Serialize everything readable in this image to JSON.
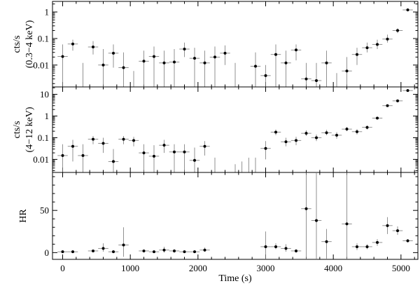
{
  "chart_data": [
    {
      "type": "scatter",
      "panel": "soft",
      "ylabel_line1": "cts/s",
      "ylabel_line2": "(0.3−4 keV)",
      "yscale": "log",
      "ylim": [
        0.0015,
        2.5
      ],
      "yticks": [
        {
          "v": 0.01,
          "label": "0.01"
        },
        {
          "v": 0.1,
          "label": "0.1"
        },
        {
          "v": 1,
          "label": "1"
        }
      ],
      "xlim": [
        -150,
        5250
      ],
      "bin_halfwidth": 75,
      "points": [
        {
          "x": 0,
          "y": 0.021,
          "lo": 0.0015,
          "hi": 0.06
        },
        {
          "x": 150,
          "y": 0.062,
          "lo": 0.035,
          "hi": 0.09
        },
        {
          "x": 300,
          "y": null,
          "lo": 0.0015,
          "hi": 0.012
        },
        {
          "x": 450,
          "y": 0.048,
          "lo": 0.025,
          "hi": 0.08
        },
        {
          "x": 600,
          "y": 0.01,
          "lo": 0.0015,
          "hi": 0.04
        },
        {
          "x": 750,
          "y": 0.028,
          "lo": 0.008,
          "hi": 0.06
        },
        {
          "x": 900,
          "y": 0.008,
          "lo": 0.0015,
          "hi": 0.03
        },
        {
          "x": 1050,
          "y": null,
          "lo": 0.0015,
          "hi": 0.006
        },
        {
          "x": 1200,
          "y": 0.014,
          "lo": 0.0015,
          "hi": 0.035
        },
        {
          "x": 1350,
          "y": 0.021,
          "lo": 0.0015,
          "hi": 0.05
        },
        {
          "x": 1500,
          "y": 0.012,
          "lo": 0.0015,
          "hi": 0.035
        },
        {
          "x": 1650,
          "y": 0.013,
          "lo": 0.0015,
          "hi": 0.04
        },
        {
          "x": 1800,
          "y": 0.04,
          "lo": 0.02,
          "hi": 0.07
        },
        {
          "x": 1950,
          "y": 0.018,
          "lo": 0.0015,
          "hi": 0.045
        },
        {
          "x": 2100,
          "y": 0.012,
          "lo": 0.0015,
          "hi": 0.035
        },
        {
          "x": 2250,
          "y": 0.02,
          "lo": 0.0015,
          "hi": 0.05
        },
        {
          "x": 2400,
          "y": 0.028,
          "lo": 0.01,
          "hi": 0.055
        },
        {
          "x": 2550,
          "y": null,
          "lo": 0.0015,
          "hi": 0.012
        },
        {
          "x": 2850,
          "y": 0.009,
          "lo": 0.0015,
          "hi": 0.03
        },
        {
          "x": 3000,
          "y": 0.004,
          "lo": 0.0015,
          "hi": 0.01
        },
        {
          "x": 3150,
          "y": 0.025,
          "lo": 0.0015,
          "hi": 0.06
        },
        {
          "x": 3300,
          "y": 0.012,
          "lo": 0.0015,
          "hi": 0.035
        },
        {
          "x": 3450,
          "y": 0.037,
          "lo": 0.015,
          "hi": 0.06
        },
        {
          "x": 3600,
          "y": 0.003,
          "lo": 0.0015,
          "hi": 0.012
        },
        {
          "x": 3750,
          "y": 0.0026,
          "lo": 0.0015,
          "hi": 0.012
        },
        {
          "x": 3900,
          "y": 0.012,
          "lo": 0.0015,
          "hi": 0.035
        },
        {
          "x": 4050,
          "y": null,
          "lo": 0.0015,
          "hi": 0.005
        },
        {
          "x": 4200,
          "y": 0.006,
          "lo": 0.0015,
          "hi": 0.02
        },
        {
          "x": 4350,
          "y": 0.025,
          "lo": 0.01,
          "hi": 0.045
        },
        {
          "x": 4500,
          "y": 0.045,
          "lo": 0.03,
          "hi": 0.07
        },
        {
          "x": 4650,
          "y": 0.06,
          "lo": 0.04,
          "hi": 0.09
        },
        {
          "x": 4800,
          "y": 0.095,
          "lo": 0.07,
          "hi": 0.14
        },
        {
          "x": 4950,
          "y": 0.2,
          "lo": 0.16,
          "hi": 0.24
        },
        {
          "x": 5100,
          "y": 1.2,
          "lo": 1.05,
          "hi": 1.35
        }
      ]
    },
    {
      "type": "scatter",
      "panel": "hard",
      "ylabel_line1": "cts/s",
      "ylabel_line2": "(4−12 keV)",
      "yscale": "log",
      "ylim": [
        0.0025,
        22
      ],
      "yticks": [
        {
          "v": 0.01,
          "label": "0.01"
        },
        {
          "v": 0.1,
          "label": "0.1"
        },
        {
          "v": 1,
          "label": "1"
        },
        {
          "v": 10,
          "label": "10"
        }
      ],
      "xlim": [
        -150,
        5250
      ],
      "bin_halfwidth": 75,
      "points": [
        {
          "x": 0,
          "y": 0.015,
          "lo": 0.0025,
          "hi": 0.05
        },
        {
          "x": 150,
          "y": 0.04,
          "lo": 0.008,
          "hi": 0.08
        },
        {
          "x": 300,
          "y": 0.015,
          "lo": 0.0025,
          "hi": 0.05
        },
        {
          "x": 450,
          "y": 0.085,
          "lo": 0.05,
          "hi": 0.12
        },
        {
          "x": 600,
          "y": 0.055,
          "lo": 0.02,
          "hi": 0.1
        },
        {
          "x": 750,
          "y": 0.008,
          "lo": 0.0025,
          "hi": 0.03
        },
        {
          "x": 900,
          "y": 0.085,
          "lo": 0.05,
          "hi": 0.12
        },
        {
          "x": 1050,
          "y": 0.075,
          "lo": 0.04,
          "hi": 0.11
        },
        {
          "x": 1200,
          "y": 0.02,
          "lo": 0.0025,
          "hi": 0.05
        },
        {
          "x": 1350,
          "y": 0.014,
          "lo": 0.0025,
          "hi": 0.045
        },
        {
          "x": 1500,
          "y": 0.045,
          "lo": 0.02,
          "hi": 0.08
        },
        {
          "x": 1650,
          "y": 0.022,
          "lo": 0.0025,
          "hi": 0.05
        },
        {
          "x": 1800,
          "y": 0.022,
          "lo": 0.0025,
          "hi": 0.05
        },
        {
          "x": 1950,
          "y": 0.009,
          "lo": 0.0025,
          "hi": 0.035
        },
        {
          "x": 2100,
          "y": 0.04,
          "lo": 0.015,
          "hi": 0.07
        },
        {
          "x": 2250,
          "y": null,
          "lo": 0.0025,
          "hi": 0.012
        },
        {
          "x": 2550,
          "y": null,
          "lo": 0.0025,
          "hi": 0.006
        },
        {
          "x": 2650,
          "y": null,
          "lo": 0.0025,
          "hi": 0.008
        },
        {
          "x": 2750,
          "y": null,
          "lo": 0.0025,
          "hi": 0.012
        },
        {
          "x": 2850,
          "y": null,
          "lo": 0.0025,
          "hi": 0.012
        },
        {
          "x": 3000,
          "y": 0.032,
          "lo": 0.01,
          "hi": 0.07
        },
        {
          "x": 3150,
          "y": 0.18,
          "lo": 0.13,
          "hi": 0.24
        },
        {
          "x": 3300,
          "y": 0.065,
          "lo": 0.04,
          "hi": 0.1
        },
        {
          "x": 3450,
          "y": 0.075,
          "lo": 0.045,
          "hi": 0.11
        },
        {
          "x": 3600,
          "y": 0.16,
          "lo": 0.12,
          "hi": 0.22
        },
        {
          "x": 3750,
          "y": 0.1,
          "lo": 0.07,
          "hi": 0.14
        },
        {
          "x": 3900,
          "y": 0.17,
          "lo": 0.13,
          "hi": 0.23
        },
        {
          "x": 4050,
          "y": 0.13,
          "lo": 0.09,
          "hi": 0.18
        },
        {
          "x": 4200,
          "y": 0.25,
          "lo": 0.2,
          "hi": 0.31
        },
        {
          "x": 4350,
          "y": 0.19,
          "lo": 0.14,
          "hi": 0.25
        },
        {
          "x": 4500,
          "y": 0.3,
          "lo": 0.24,
          "hi": 0.37
        },
        {
          "x": 4650,
          "y": 0.8,
          "lo": 0.7,
          "hi": 0.92
        },
        {
          "x": 4800,
          "y": 3.0,
          "lo": 2.7,
          "hi": 3.3
        },
        {
          "x": 4950,
          "y": 5.0,
          "lo": 4.6,
          "hi": 5.4
        },
        {
          "x": 5100,
          "y": 15.0,
          "lo": 14.0,
          "hi": 16.0
        }
      ]
    },
    {
      "type": "scatter",
      "panel": "hr",
      "ylabel": "HR",
      "yscale": "linear",
      "ylim": [
        -8,
        95
      ],
      "yticks": [
        {
          "v": 0,
          "label": "0"
        },
        {
          "v": 50,
          "label": "50"
        }
      ],
      "xlim": [
        -150,
        5250
      ],
      "xlabel": "Time (s)",
      "xticks": [
        {
          "v": 0,
          "label": "0"
        },
        {
          "v": 1000,
          "label": "1000"
        },
        {
          "v": 2000,
          "label": "2000"
        },
        {
          "v": 3000,
          "label": "3000"
        },
        {
          "v": 4000,
          "label": "4000"
        },
        {
          "v": 5000,
          "label": "5000"
        }
      ],
      "bin_halfwidth": 75,
      "points": [
        {
          "x": 0,
          "y": 1,
          "lo": 0,
          "hi": 2
        },
        {
          "x": 150,
          "y": 1,
          "lo": 0,
          "hi": 2
        },
        {
          "x": 450,
          "y": 2,
          "lo": 1,
          "hi": 3.5
        },
        {
          "x": 600,
          "y": 5,
          "lo": 1,
          "hi": 11
        },
        {
          "x": 750,
          "y": 1,
          "lo": 0,
          "hi": 2
        },
        {
          "x": 900,
          "y": 9,
          "lo": -5,
          "hi": 30
        },
        {
          "x": 1200,
          "y": 2,
          "lo": 1,
          "hi": 3
        },
        {
          "x": 1350,
          "y": 1,
          "lo": 0,
          "hi": 2
        },
        {
          "x": 1500,
          "y": 3,
          "lo": 0,
          "hi": 7
        },
        {
          "x": 1650,
          "y": 2,
          "lo": 0,
          "hi": 4
        },
        {
          "x": 1800,
          "y": 1,
          "lo": 0,
          "hi": 2
        },
        {
          "x": 1950,
          "y": 1,
          "lo": 0,
          "hi": 2
        },
        {
          "x": 2100,
          "y": 3,
          "lo": 1,
          "hi": 6
        },
        {
          "x": 3000,
          "y": 7,
          "lo": -8,
          "hi": 25
        },
        {
          "x": 3150,
          "y": 7,
          "lo": 4,
          "hi": 11
        },
        {
          "x": 3300,
          "y": 5,
          "lo": 1,
          "hi": 10
        },
        {
          "x": 3450,
          "y": 2,
          "lo": 0,
          "hi": 4
        },
        {
          "x": 3600,
          "y": 52,
          "lo": -8,
          "hi": 95
        },
        {
          "x": 3750,
          "y": 38,
          "lo": -8,
          "hi": 95
        },
        {
          "x": 3900,
          "y": 13,
          "lo": -8,
          "hi": 28
        },
        {
          "x": 4200,
          "y": 34,
          "lo": -8,
          "hi": 95
        },
        {
          "x": 4350,
          "y": 7,
          "lo": 3,
          "hi": 11
        },
        {
          "x": 4500,
          "y": 7,
          "lo": 4,
          "hi": 10
        },
        {
          "x": 4650,
          "y": 12,
          "lo": 8,
          "hi": 16
        },
        {
          "x": 4800,
          "y": 32,
          "lo": 22,
          "hi": 42
        },
        {
          "x": 4950,
          "y": 26,
          "lo": 21,
          "hi": 31
        },
        {
          "x": 5100,
          "y": 14,
          "lo": 12,
          "hi": 16
        }
      ]
    }
  ]
}
